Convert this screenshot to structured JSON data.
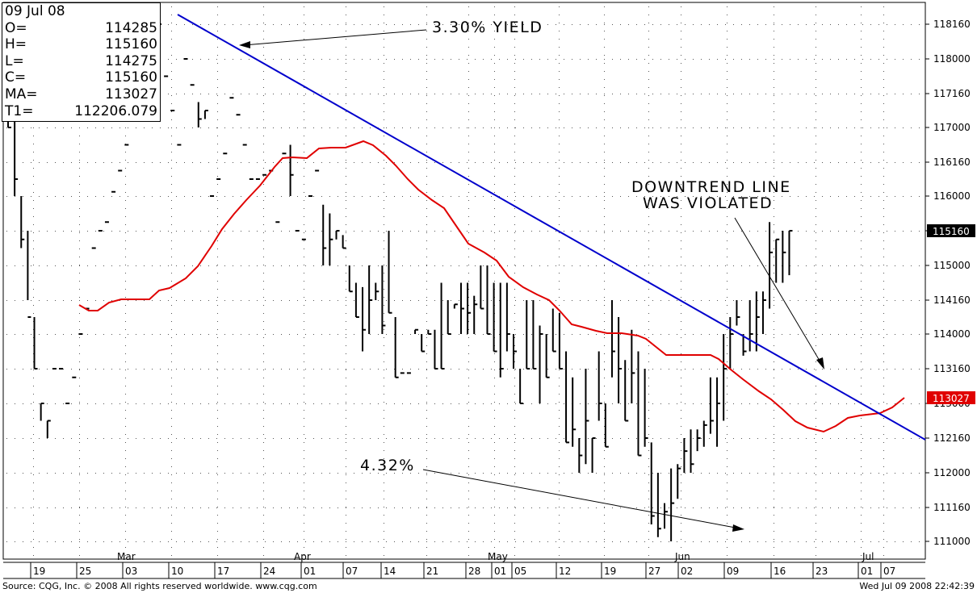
{
  "ohlc_box": {
    "date": "09 Jul 08",
    "rows": [
      {
        "label": "O=",
        "value": "114285"
      },
      {
        "label": "H=",
        "value": "115160"
      },
      {
        "label": "L=",
        "value": "114275"
      },
      {
        "label": "C=",
        "value": "115160"
      },
      {
        "label": "MA=",
        "value": "113027"
      },
      {
        "label": "T1=",
        "value": "112206.079"
      }
    ]
  },
  "footer": {
    "source": "Source: CQG, Inc. © 2008 All rights reserved worldwide. www.cqg.com",
    "timestamp": "Wed Jul 09 2008 22:42:39"
  },
  "colors": {
    "bars": "#000000",
    "moving_average": "#e00000",
    "trendline": "#0000cc",
    "grid_dots": "#555555"
  },
  "chart_data": {
    "type": "ohlc",
    "y_ticks": [
      "118160",
      "118000",
      "117160",
      "117000",
      "116160",
      "116000",
      "115160",
      "115000",
      "114160",
      "114000",
      "113160",
      "113000",
      "112160",
      "112000",
      "111160",
      "111000"
    ],
    "y_scale": [
      [
        118160,
        113.5
      ],
      [
        117000,
        113.5
      ],
      [
        116160,
        113.5
      ]
    ],
    "last_price_label": "115160",
    "ma_label": "113027",
    "x_day_ticks": [
      "19",
      "25",
      "03",
      "10",
      "17",
      "24",
      "01",
      "07",
      "14",
      "21",
      "28",
      "01",
      "05",
      "12",
      "19",
      "27",
      "02",
      "09",
      "16",
      "23",
      "01",
      "07"
    ],
    "x_month_labels": [
      "Mar",
      "Apr",
      "May",
      "Jun",
      "Jul"
    ],
    "annotations": [
      "3.30% YIELD",
      "DOWNTREND LINE",
      "WAS VIOLATED",
      "4.32%"
    ],
    "bars": [
      [
        19,
        118160,
        117000,
        117160,
        117000
      ],
      [
        20,
        117080,
        116000,
        116160,
        116080
      ],
      [
        21,
        116000,
        115080,
        115160,
        115120
      ],
      [
        22,
        115160,
        114160,
        114160,
        114080
      ],
      [
        23,
        114080,
        113160,
        113240,
        113160
      ],
      [
        24,
        113000,
        112240,
        113000,
        113000
      ],
      [
        25,
        112240,
        112160,
        112240,
        112240
      ],
      [
        26,
        113160,
        113160,
        113160,
        113160
      ],
      [
        27,
        113160,
        113160,
        113160,
        113160
      ],
      [
        28,
        113000,
        113000,
        113000,
        113000
      ],
      [
        29,
        113120,
        113120,
        113120,
        113120
      ],
      [
        30,
        114000,
        114000,
        114000,
        114000
      ],
      [
        31,
        114120,
        114120,
        114120,
        114120
      ],
      [
        32,
        115080,
        115080,
        115080,
        115080
      ],
      [
        33,
        115160,
        115160,
        115160,
        115160
      ],
      [
        34,
        115200,
        115200,
        115200,
        115200
      ],
      [
        35,
        116020,
        116020,
        116020,
        116020
      ],
      [
        36,
        116120,
        116120,
        116120,
        116120
      ],
      [
        37,
        116240,
        116240,
        116240,
        116240
      ],
      [
        38,
        117080,
        117080,
        117080,
        117080
      ],
      [
        39,
        117240,
        117240,
        117240,
        117240
      ],
      [
        40,
        117240,
        117240,
        117240,
        117240
      ],
      [
        41,
        118000,
        118000,
        118000,
        118000
      ],
      [
        42,
        118160,
        118160,
        118160,
        118160
      ],
      [
        43,
        117240,
        117240,
        117240,
        117240
      ],
      [
        44,
        117080,
        117080,
        117080,
        117080
      ],
      [
        45,
        116240,
        116240,
        116240,
        116240
      ],
      [
        46,
        118000,
        118000,
        118000,
        118000
      ],
      [
        47,
        117200,
        117200,
        117200,
        117200
      ],
      [
        48,
        117120,
        117000,
        117040,
        117040
      ],
      [
        49,
        117080,
        117040,
        117080,
        117080
      ],
      [
        50,
        116000,
        116000,
        116000,
        116000
      ],
      [
        51,
        116080,
        116080,
        116080,
        116080
      ],
      [
        52,
        116200,
        116200,
        116200,
        116200
      ],
      [
        53,
        117140,
        117140,
        117140,
        117140
      ],
      [
        54,
        117060,
        117060,
        117060,
        117060
      ],
      [
        55,
        116240,
        116240,
        116240,
        116240
      ],
      [
        56,
        116080,
        116080,
        116080,
        116080
      ],
      [
        57,
        116080,
        116080,
        116080,
        116080
      ],
      [
        58,
        116100,
        116100,
        116100,
        116100
      ],
      [
        59,
        116120,
        116120,
        116120,
        116120
      ],
      [
        60,
        115200,
        115200,
        115200,
        115200
      ],
      [
        61,
        116200,
        116200,
        116200,
        116200
      ],
      [
        62,
        116240,
        116000,
        116100,
        116100
      ],
      [
        63,
        115160,
        115160,
        115160,
        115160
      ],
      [
        64,
        115120,
        115120,
        115120,
        115120
      ],
      [
        65,
        116000,
        116000,
        116000,
        116000
      ],
      [
        66,
        116120,
        116120,
        116120,
        116120
      ],
      [
        67,
        115280,
        115000,
        115080,
        115080
      ],
      [
        68,
        115240,
        115000,
        115120,
        115120
      ],
      [
        69,
        115160,
        115120,
        115160,
        115160
      ],
      [
        70,
        115140,
        115080,
        115080,
        115080
      ],
      [
        71,
        115000,
        114200,
        114240,
        114200
      ],
      [
        72,
        114240,
        114080,
        114080,
        114080
      ],
      [
        73,
        114220,
        113240,
        114020,
        114020
      ],
      [
        74,
        115000,
        114000,
        114160,
        114160
      ],
      [
        75,
        114240,
        114160,
        114200,
        114200
      ],
      [
        76,
        115000,
        114000,
        114040,
        114040
      ],
      [
        77,
        115160,
        114100,
        114100,
        114100
      ],
      [
        78,
        114080,
        113120,
        113120,
        113120
      ],
      [
        79,
        113140,
        113140,
        113140,
        113140
      ],
      [
        80,
        113140,
        113140,
        113140,
        113140
      ],
      [
        81,
        114020,
        114000,
        114020,
        114020
      ],
      [
        82,
        114000,
        113240,
        113240,
        113240
      ],
      [
        83,
        114020,
        114000,
        114000,
        114000
      ],
      [
        84,
        114020,
        113160,
        113160,
        113160
      ],
      [
        85,
        114240,
        113160,
        113160,
        113160
      ],
      [
        86,
        114160,
        114000,
        114000,
        114000
      ],
      [
        87,
        114140,
        114120,
        114140,
        114140
      ],
      [
        88,
        114240,
        114000,
        114120,
        114120
      ],
      [
        89,
        114240,
        114000,
        114100,
        114100
      ],
      [
        90,
        114180,
        114000,
        114140,
        114140
      ],
      [
        91,
        115000,
        114120,
        114120,
        114120
      ],
      [
        92,
        115000,
        114000,
        114000,
        114000
      ],
      [
        93,
        114240,
        113240,
        113240,
        113240
      ],
      [
        94,
        114240,
        113120,
        113160,
        113160
      ],
      [
        95,
        114240,
        113240,
        114000,
        114000
      ],
      [
        96,
        114000,
        113160,
        113240,
        113240
      ],
      [
        97,
        113160,
        113000,
        113000,
        113000
      ],
      [
        98,
        114160,
        113160,
        113160,
        113160
      ],
      [
        99,
        114160,
        113160,
        113160,
        113160
      ],
      [
        100,
        114040,
        113000,
        114000,
        114000
      ],
      [
        101,
        114000,
        113120,
        113120,
        113120
      ],
      [
        102,
        114120,
        113240,
        113240,
        113240
      ],
      [
        103,
        114100,
        113160,
        113160,
        113160
      ],
      [
        104,
        113240,
        112140,
        112140,
        112140
      ],
      [
        105,
        113120,
        112120,
        112200,
        112200
      ],
      [
        106,
        112160,
        112000,
        112080,
        112080
      ],
      [
        107,
        113160,
        112040,
        112240,
        112240
      ],
      [
        108,
        112160,
        112000,
        112160,
        112160
      ],
      [
        109,
        113240,
        112240,
        113000,
        113000
      ],
      [
        110,
        113000,
        112120,
        112120,
        112120
      ],
      [
        111,
        114160,
        113120,
        113240,
        113240
      ],
      [
        112,
        114080,
        113000,
        113160,
        113160
      ],
      [
        113,
        113200,
        112240,
        112240,
        112240
      ],
      [
        114,
        114020,
        113000,
        113140,
        113140
      ],
      [
        115,
        113240,
        112080,
        112080,
        112080
      ],
      [
        116,
        113160,
        112120,
        112160,
        112160
      ],
      [
        117,
        112140,
        111080,
        111120,
        111120
      ],
      [
        118,
        112000,
        111020,
        111060,
        111060
      ],
      [
        119,
        111180,
        111060,
        111140,
        111140
      ],
      [
        120,
        112020,
        111000,
        111180,
        111180
      ],
      [
        121,
        112040,
        111200,
        112020,
        112020
      ],
      [
        122,
        112160,
        112000,
        112100,
        112100
      ],
      [
        123,
        112200,
        112000,
        112040,
        112040
      ],
      [
        124,
        112200,
        112100,
        112160,
        112160
      ],
      [
        125,
        112240,
        112120,
        112220,
        112220
      ],
      [
        126,
        113120,
        112180,
        112240,
        112240
      ],
      [
        127,
        113120,
        112120,
        113000,
        113000
      ],
      [
        128,
        114000,
        112240,
        113160,
        113160
      ],
      [
        129,
        114080,
        113160,
        114000,
        114000
      ],
      [
        130,
        114160,
        114040,
        114080,
        114080
      ],
      [
        131,
        114000,
        113220,
        113240,
        113240
      ],
      [
        132,
        114160,
        113240,
        114000,
        114000
      ],
      [
        133,
        114200,
        113240,
        114080,
        114080
      ],
      [
        134,
        114200,
        114000,
        114160,
        114160
      ],
      [
        135,
        115200,
        114120,
        115060,
        115060
      ],
      [
        136,
        115120,
        114240,
        115120,
        115120
      ],
      [
        137,
        115160,
        114240,
        115060,
        115060
      ],
      [
        138,
        115160,
        114275,
        115160,
        115160
      ]
    ],
    "moving_average_label": "MA",
    "trendline_label": "T1"
  }
}
